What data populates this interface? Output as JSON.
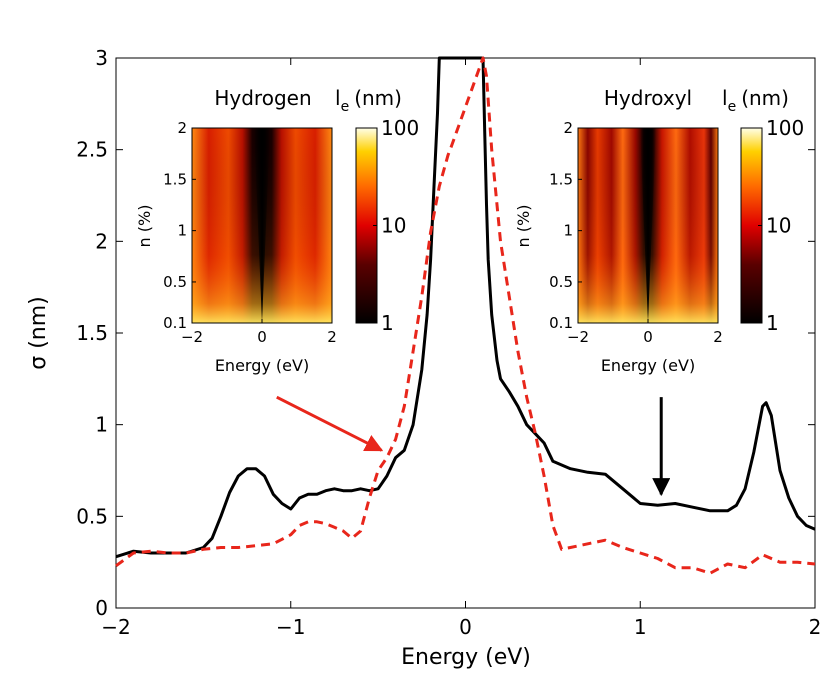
{
  "chart_data": [
    {
      "type": "line",
      "xlabel": "Energy (eV)",
      "ylabel": "σ (nm)",
      "xlim": [
        -2,
        2
      ],
      "ylim": [
        0,
        3
      ],
      "xticks": [
        "−2",
        "−1",
        "0",
        "1",
        "2"
      ],
      "yticks": [
        "0",
        "0.5",
        "1",
        "1.5",
        "2",
        "2.5",
        "3"
      ],
      "grid": false,
      "series": [
        {
          "name": "hydroxyl",
          "style": "solid",
          "color": "#000000",
          "x": [
            -2.0,
            -1.9,
            -1.8,
            -1.7,
            -1.6,
            -1.5,
            -1.45,
            -1.4,
            -1.35,
            -1.3,
            -1.25,
            -1.2,
            -1.15,
            -1.1,
            -1.05,
            -1.0,
            -0.95,
            -0.9,
            -0.85,
            -0.8,
            -0.75,
            -0.7,
            -0.65,
            -0.6,
            -0.55,
            -0.5,
            -0.45,
            -0.4,
            -0.35,
            -0.3,
            -0.25,
            -0.22,
            -0.2,
            -0.18,
            -0.16,
            -0.15,
            0.1,
            0.11,
            0.12,
            0.13,
            0.15,
            0.18,
            0.2,
            0.25,
            0.3,
            0.35,
            0.4,
            0.45,
            0.5,
            0.6,
            0.7,
            0.8,
            0.9,
            1.0,
            1.1,
            1.2,
            1.3,
            1.4,
            1.5,
            1.55,
            1.6,
            1.65,
            1.7,
            1.72,
            1.75,
            1.8,
            1.85,
            1.9,
            1.95,
            2.0
          ],
          "y": [
            0.28,
            0.31,
            0.3,
            0.3,
            0.3,
            0.33,
            0.38,
            0.5,
            0.63,
            0.72,
            0.76,
            0.76,
            0.72,
            0.62,
            0.57,
            0.54,
            0.6,
            0.62,
            0.62,
            0.64,
            0.65,
            0.64,
            0.64,
            0.65,
            0.64,
            0.65,
            0.72,
            0.82,
            0.86,
            1.0,
            1.3,
            1.6,
            1.9,
            2.3,
            2.7,
            3.0,
            3.0,
            2.6,
            2.2,
            1.9,
            1.6,
            1.35,
            1.25,
            1.18,
            1.1,
            1.0,
            0.95,
            0.9,
            0.8,
            0.76,
            0.74,
            0.73,
            0.65,
            0.57,
            0.56,
            0.57,
            0.55,
            0.53,
            0.53,
            0.56,
            0.65,
            0.85,
            1.1,
            1.12,
            1.05,
            0.75,
            0.6,
            0.5,
            0.45,
            0.43
          ]
        },
        {
          "name": "hydrogen",
          "style": "dashed",
          "color": "#e8261b",
          "x": [
            -2.0,
            -1.9,
            -1.8,
            -1.7,
            -1.6,
            -1.5,
            -1.4,
            -1.3,
            -1.2,
            -1.1,
            -1.0,
            -0.95,
            -0.9,
            -0.85,
            -0.8,
            -0.75,
            -0.7,
            -0.65,
            -0.6,
            -0.55,
            -0.5,
            -0.45,
            -0.4,
            -0.35,
            -0.3,
            -0.25,
            -0.2,
            -0.15,
            -0.1,
            -0.08,
            0.1,
            0.12,
            0.15,
            0.2,
            0.25,
            0.3,
            0.35,
            0.4,
            0.45,
            0.5,
            0.55,
            0.6,
            0.7,
            0.8,
            0.9,
            1.0,
            1.1,
            1.2,
            1.3,
            1.4,
            1.5,
            1.6,
            1.7,
            1.8,
            1.9,
            2.0
          ],
          "y": [
            0.23,
            0.3,
            0.31,
            0.3,
            0.3,
            0.32,
            0.33,
            0.33,
            0.34,
            0.35,
            0.4,
            0.45,
            0.47,
            0.47,
            0.46,
            0.44,
            0.42,
            0.38,
            0.42,
            0.6,
            0.75,
            0.82,
            0.92,
            1.1,
            1.4,
            1.7,
            2.05,
            2.3,
            2.47,
            2.52,
            3.0,
            2.9,
            2.5,
            2.0,
            1.7,
            1.4,
            1.15,
            0.95,
            0.72,
            0.45,
            0.32,
            0.33,
            0.35,
            0.37,
            0.33,
            0.3,
            0.27,
            0.22,
            0.22,
            0.19,
            0.24,
            0.22,
            0.29,
            0.25,
            0.25,
            0.24
          ]
        }
      ],
      "annotations": [
        {
          "type": "arrow",
          "color": "#e8261b",
          "from": [
            -1.08,
            1.15
          ],
          "to": [
            -0.48,
            0.86
          ]
        },
        {
          "type": "arrow",
          "color": "#000000",
          "from": [
            1.12,
            1.15
          ],
          "to": [
            1.12,
            0.62
          ]
        }
      ]
    },
    {
      "type": "heatmap",
      "title": "Hydrogen",
      "xlabel": "Energy (eV)",
      "ylabel": "n (%)",
      "xlim": [
        -2,
        2
      ],
      "xticks": [
        "−2",
        "0",
        "2"
      ],
      "yticks": [
        "0.1",
        "0.5",
        "1",
        "1.5",
        "2"
      ],
      "colorbar": {
        "label": "l",
        "subscript": "e",
        "unit": "(nm)",
        "ticks": [
          "1",
          "10",
          "100"
        ],
        "scale": "log"
      }
    },
    {
      "type": "heatmap",
      "title": "Hydroxyl",
      "xlabel": "Energy (eV)",
      "ylabel": "n (%)",
      "xlim": [
        -2,
        2
      ],
      "xticks": [
        "−2",
        "0",
        "2"
      ],
      "yticks": [
        "0.1",
        "0.5",
        "1",
        "1.5",
        "2"
      ],
      "colorbar": {
        "label": "l",
        "subscript": "e",
        "unit": "(nm)",
        "ticks": [
          "1",
          "10",
          "100"
        ],
        "scale": "log"
      }
    }
  ]
}
